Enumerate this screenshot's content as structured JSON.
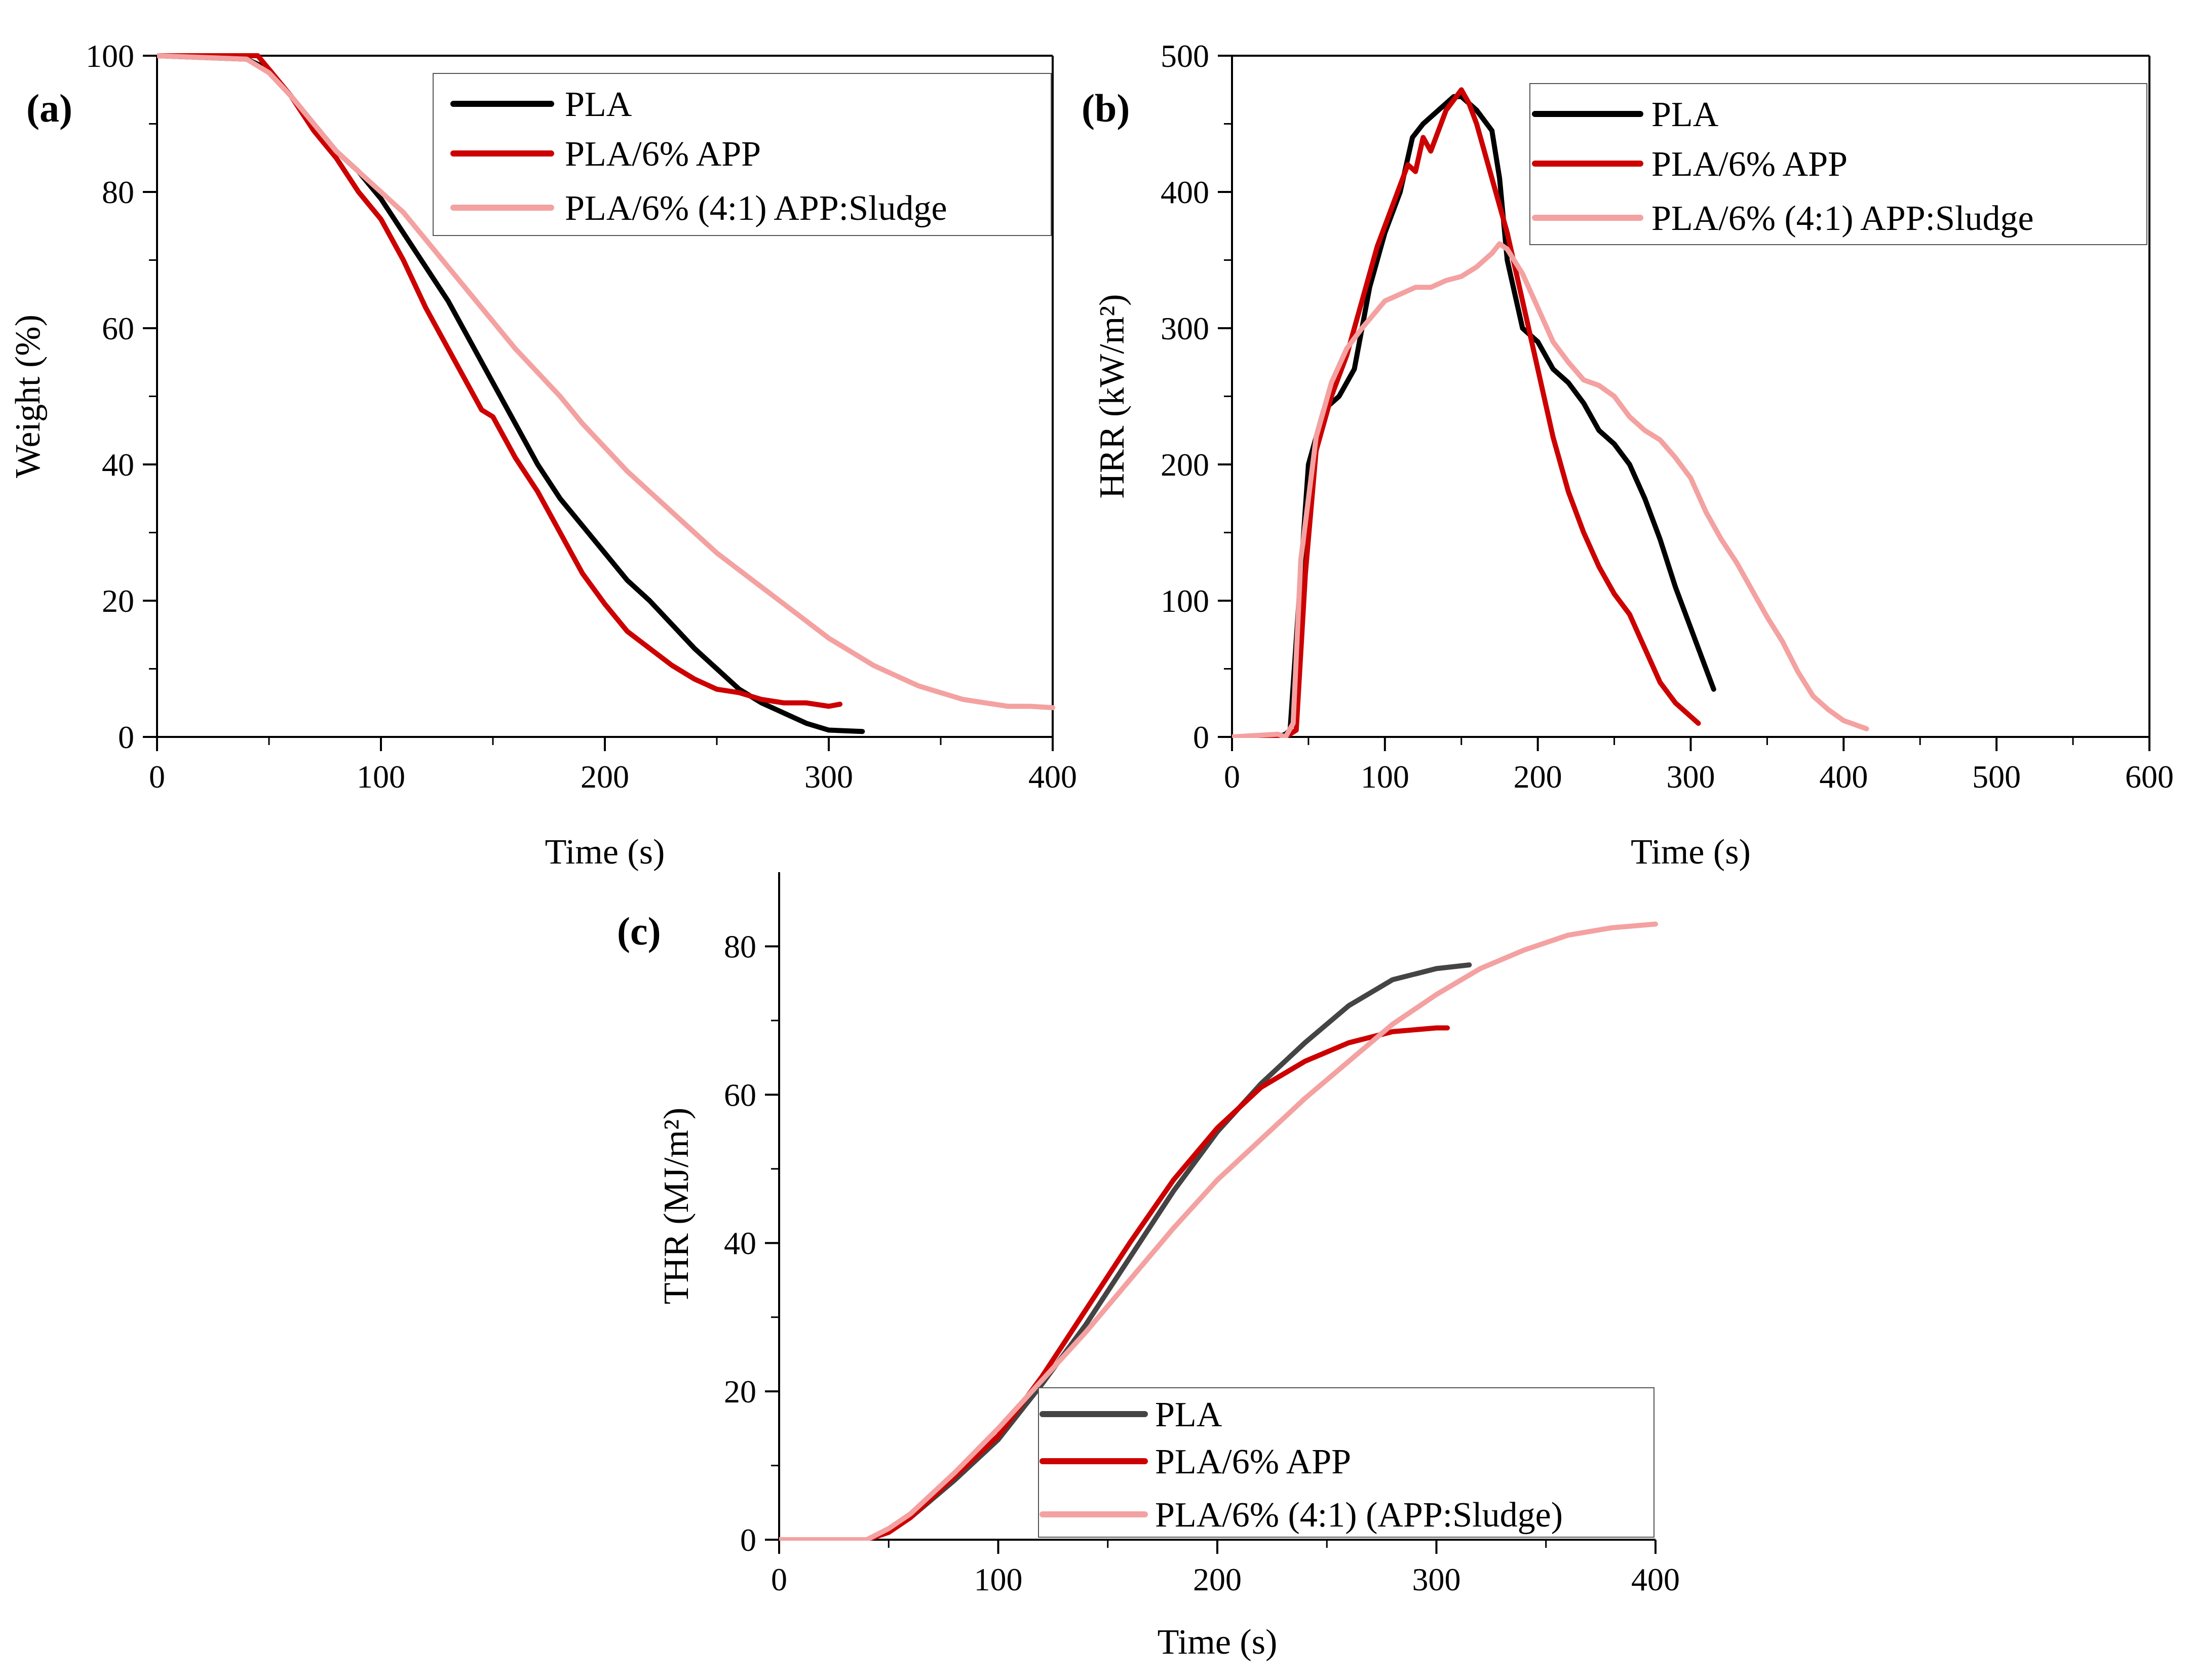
{
  "chart_data": [
    {
      "type": "line",
      "panel_label": "(a)",
      "xlabel": "Time (s)",
      "ylabel": "Weight (%)",
      "xlim": [
        0,
        400
      ],
      "ylim": [
        0,
        100
      ],
      "xticks": [
        0,
        100,
        200,
        300,
        400
      ],
      "yticks": [
        0,
        20,
        40,
        60,
        80,
        100
      ],
      "legend_position": "top-right",
      "series": [
        {
          "name": "PLA",
          "color": "#000000",
          "x": [
            0,
            40,
            50,
            60,
            70,
            80,
            90,
            100,
            110,
            120,
            130,
            140,
            150,
            160,
            170,
            180,
            190,
            200,
            210,
            220,
            230,
            240,
            250,
            260,
            270,
            280,
            290,
            300,
            315
          ],
          "y": [
            100,
            99.5,
            98,
            94,
            90,
            86,
            83,
            79,
            74,
            69,
            64,
            58,
            52,
            46,
            40,
            35,
            31,
            27,
            23,
            20,
            16.5,
            13,
            10,
            7,
            5,
            3.5,
            2,
            1,
            0.8
          ]
        },
        {
          "name": "PLA/6% APP",
          "color": "#cc0000",
          "x": [
            0,
            45,
            50,
            60,
            70,
            80,
            90,
            95,
            100,
            110,
            120,
            130,
            140,
            145,
            150,
            160,
            170,
            180,
            190,
            200,
            210,
            220,
            230,
            240,
            250,
            260,
            270,
            280,
            290,
            300,
            305
          ],
          "y": [
            100,
            100,
            98,
            94,
            89,
            85,
            80,
            78,
            76,
            70,
            63,
            57,
            51,
            48,
            47,
            41,
            36,
            30,
            24,
            19.5,
            15.5,
            13,
            10.5,
            8.5,
            7,
            6.5,
            5.5,
            5,
            5,
            4.5,
            4.8
          ]
        },
        {
          "name": "PLA/6% (4:1) APP:Sludge",
          "color": "#f4a1a1",
          "x": [
            0,
            40,
            50,
            60,
            70,
            80,
            90,
            100,
            110,
            120,
            130,
            140,
            150,
            160,
            170,
            180,
            190,
            200,
            210,
            220,
            230,
            240,
            250,
            260,
            270,
            280,
            290,
            300,
            310,
            320,
            330,
            340,
            350,
            360,
            370,
            380,
            390,
            400
          ],
          "y": [
            100,
            99.5,
            97.5,
            94,
            90,
            86,
            83,
            80,
            77,
            73,
            69,
            65,
            61,
            57,
            53.5,
            50,
            46,
            42.5,
            39,
            36,
            33,
            30,
            27,
            24.5,
            22,
            19.5,
            17,
            14.5,
            12.5,
            10.5,
            9,
            7.5,
            6.5,
            5.5,
            5,
            4.5,
            4.5,
            4.3
          ]
        }
      ]
    },
    {
      "type": "line",
      "panel_label": "(b)",
      "xlabel": "Time (s)",
      "ylabel": "HRR (kW/m²)",
      "xlim": [
        0,
        600
      ],
      "ylim": [
        0,
        500
      ],
      "xticks": [
        0,
        100,
        200,
        300,
        400,
        500,
        600
      ],
      "yticks": [
        0,
        100,
        200,
        300,
        400,
        500
      ],
      "legend_position": "top-right",
      "series": [
        {
          "name": "PLA",
          "color": "#000000",
          "x": [
            0,
            30,
            35,
            38,
            45,
            50,
            60,
            70,
            80,
            90,
            100,
            110,
            118,
            125,
            135,
            145,
            150,
            160,
            170,
            175,
            180,
            190,
            195,
            200,
            210,
            220,
            230,
            240,
            250,
            260,
            270,
            280,
            290,
            300,
            310,
            315
          ],
          "y": [
            0,
            0,
            2,
            5,
            120,
            200,
            240,
            250,
            270,
            330,
            370,
            400,
            440,
            450,
            460,
            470,
            470,
            460,
            445,
            410,
            350,
            300,
            295,
            290,
            270,
            260,
            245,
            225,
            215,
            200,
            175,
            145,
            110,
            80,
            50,
            35
          ]
        },
        {
          "name": "PLA/6% APP",
          "color": "#cc0000",
          "x": [
            0,
            35,
            42,
            48,
            55,
            65,
            75,
            85,
            95,
            105,
            115,
            120,
            125,
            130,
            140,
            150,
            155,
            160,
            170,
            180,
            190,
            200,
            210,
            220,
            230,
            240,
            250,
            260,
            270,
            280,
            290,
            300,
            305
          ],
          "y": [
            0,
            0,
            5,
            120,
            210,
            250,
            280,
            320,
            360,
            390,
            420,
            415,
            440,
            430,
            460,
            475,
            465,
            450,
            410,
            370,
            320,
            270,
            220,
            180,
            150,
            125,
            105,
            90,
            65,
            40,
            25,
            15,
            10
          ]
        },
        {
          "name": "PLA/6% (4:1) APP:Sludge",
          "color": "#f4a1a1",
          "x": [
            0,
            30,
            35,
            40,
            45,
            55,
            65,
            75,
            85,
            100,
            110,
            120,
            130,
            140,
            150,
            160,
            170,
            175,
            180,
            190,
            200,
            210,
            220,
            230,
            240,
            250,
            260,
            270,
            280,
            290,
            300,
            310,
            320,
            330,
            340,
            350,
            360,
            370,
            380,
            390,
            400,
            410,
            415
          ],
          "y": [
            0,
            2,
            0,
            10,
            130,
            220,
            260,
            285,
            300,
            320,
            325,
            330,
            330,
            335,
            338,
            345,
            355,
            362,
            358,
            340,
            315,
            290,
            275,
            262,
            258,
            250,
            235,
            225,
            218,
            205,
            190,
            165,
            145,
            128,
            108,
            88,
            70,
            48,
            30,
            20,
            12,
            8,
            6
          ]
        }
      ]
    },
    {
      "type": "line",
      "panel_label": "(c)",
      "xlabel": "Time (s)",
      "ylabel": "THR (MJ/m²)",
      "xlim": [
        0,
        400
      ],
      "ylim": [
        0,
        90
      ],
      "xticks": [
        0,
        100,
        200,
        300,
        400
      ],
      "yticks": [
        0,
        20,
        40,
        60,
        80
      ],
      "legend_position": "bottom-right",
      "series": [
        {
          "name": "PLA",
          "color": "#444444",
          "x": [
            0,
            40,
            50,
            60,
            80,
            100,
            120,
            140,
            160,
            180,
            200,
            220,
            240,
            260,
            280,
            300,
            315
          ],
          "y": [
            0,
            0,
            1,
            3,
            8,
            13.5,
            21,
            29,
            38,
            47,
            55,
            61.5,
            67,
            72,
            75.5,
            77,
            77.5
          ]
        },
        {
          "name": "PLA/6% APP",
          "color": "#cc0000",
          "x": [
            0,
            40,
            50,
            60,
            80,
            100,
            120,
            140,
            160,
            180,
            200,
            220,
            240,
            260,
            280,
            300,
            305
          ],
          "y": [
            0,
            0,
            1,
            3,
            8.5,
            14,
            22,
            31,
            40,
            48.5,
            55.5,
            61,
            64.5,
            67,
            68.5,
            69,
            69
          ]
        },
        {
          "name": "PLA/6% (4:1) (APP:Sludge)",
          "color": "#f4a1a1",
          "x": [
            0,
            40,
            50,
            60,
            80,
            100,
            120,
            140,
            160,
            180,
            200,
            220,
            240,
            260,
            280,
            300,
            320,
            340,
            360,
            380,
            400
          ],
          "y": [
            0,
            0,
            1.5,
            3.5,
            9,
            15,
            21.5,
            28,
            35,
            42,
            48.5,
            54,
            59.5,
            64.5,
            69.5,
            73.5,
            77,
            79.5,
            81.5,
            82.5,
            83
          ]
        }
      ]
    }
  ]
}
